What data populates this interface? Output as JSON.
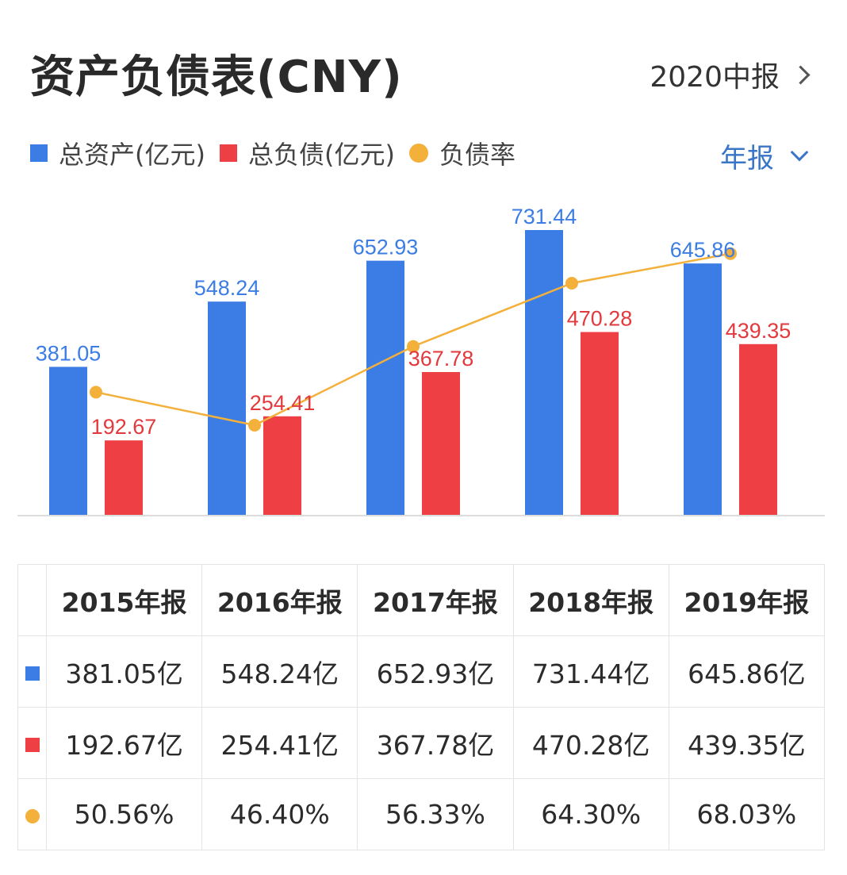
{
  "header": {
    "title": "资产负债表(CNY)",
    "period_label": "2020中报"
  },
  "legend": {
    "items": [
      {
        "label": "总资产(亿元)",
        "color": "#3b7de4",
        "marker": "square"
      },
      {
        "label": "总负债(亿元)",
        "color": "#ee4044",
        "marker": "square"
      },
      {
        "label": "负债率",
        "color": "#f3b03a",
        "marker": "dot"
      }
    ],
    "frequency_label": "年报"
  },
  "chart_data": {
    "type": "bar",
    "categories": [
      "2015年报",
      "2016年报",
      "2017年报",
      "2018年报",
      "2019年报"
    ],
    "series": [
      {
        "name": "总资产(亿元)",
        "type": "bar",
        "color": "#3b7de4",
        "values": [
          381.05,
          548.24,
          652.93,
          731.44,
          645.86
        ]
      },
      {
        "name": "总负债(亿元)",
        "type": "bar",
        "color": "#ee4044",
        "values": [
          192.67,
          254.41,
          367.78,
          470.28,
          439.35
        ]
      },
      {
        "name": "负债率",
        "type": "line",
        "color": "#f3b03a",
        "values": [
          50.56,
          46.4,
          56.33,
          64.3,
          68.03
        ],
        "unit": "%"
      }
    ],
    "data_labels": {
      "assets": [
        "381.05",
        "548.24",
        "652.93",
        "731.44",
        "645.86"
      ],
      "liabilities": [
        "192.67",
        "254.41",
        "367.78",
        "470.28",
        "439.35"
      ]
    },
    "bar_ylim": [
      0,
      731.44
    ],
    "line_ylim": [
      35,
      72
    ],
    "grid": false,
    "legend_position": "top-left"
  },
  "table": {
    "headers": [
      "2015年报",
      "2016年报",
      "2017年报",
      "2018年报",
      "2019年报"
    ],
    "rows": [
      {
        "marker": "square",
        "color": "#3b7de4",
        "cells": [
          "381.05亿",
          "548.24亿",
          "652.93亿",
          "731.44亿",
          "645.86亿"
        ]
      },
      {
        "marker": "square",
        "color": "#ee4044",
        "cells": [
          "192.67亿",
          "254.41亿",
          "367.78亿",
          "470.28亿",
          "439.35亿"
        ]
      },
      {
        "marker": "dot",
        "color": "#f3b03a",
        "cells": [
          "50.56%",
          "46.40%",
          "56.33%",
          "64.30%",
          "68.03%"
        ]
      }
    ]
  }
}
